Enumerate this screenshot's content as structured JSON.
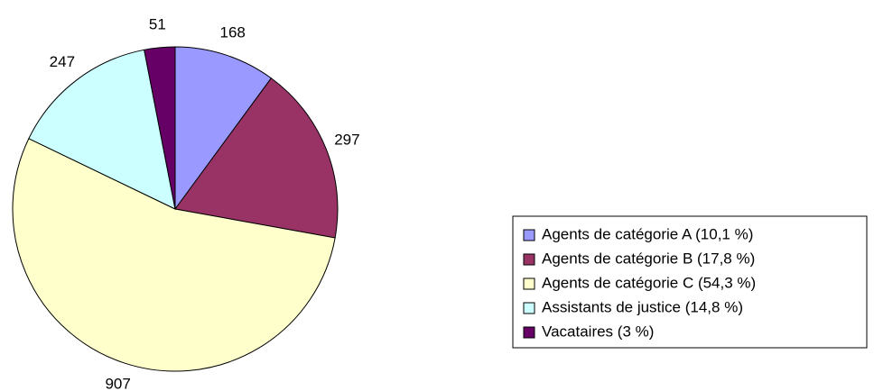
{
  "chart_data": {
    "type": "pie",
    "categories": [
      "Agents de catégorie A (10,1 %)",
      "Agents de catégorie B (17,8 %)",
      "Agents de catégorie C (54,3 %)",
      "Assistants de justice (14,8 %)",
      "Vacataires (3 %)"
    ],
    "values": [
      168,
      297,
      907,
      247,
      51
    ],
    "colors": [
      "#9999ff",
      "#993366",
      "#ffffcc",
      "#ccffff",
      "#660066"
    ],
    "legend": "right"
  }
}
